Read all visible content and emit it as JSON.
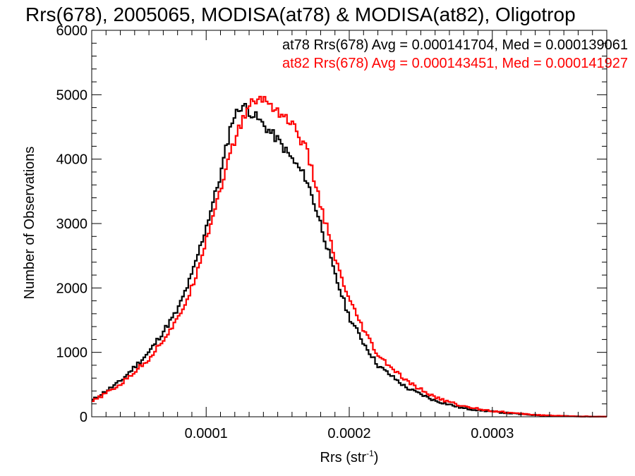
{
  "chart_data": {
    "type": "histogram",
    "title": "Rrs(678), 2005065, MODISA(at78) & MODISA(at82), Oligotrop",
    "xlabel": "Rrs (str",
    "xlabel_superscript": "-1",
    "xlabel_close": ")",
    "ylabel": "Number of Observations",
    "xlim": [
      2e-05,
      0.00038
    ],
    "ylim": [
      0,
      6000
    ],
    "x_ticks": [
      {
        "value": 0.0001,
        "label": "0.0001"
      },
      {
        "value": 0.0002,
        "label": "0.0002"
      },
      {
        "value": 0.0003,
        "label": "0.0003"
      }
    ],
    "y_ticks": [
      {
        "value": 0,
        "label": "0"
      },
      {
        "value": 1000,
        "label": "1000"
      },
      {
        "value": 2000,
        "label": "2000"
      },
      {
        "value": 3000,
        "label": "3000"
      },
      {
        "value": 4000,
        "label": "4000"
      },
      {
        "value": 5000,
        "label": "5000"
      },
      {
        "value": 6000,
        "label": "6000"
      }
    ],
    "legend_position": "top-right",
    "series": [
      {
        "name": "at78",
        "legend": "at78 Rrs(678) Avg = 0.000141704, Med = 0.000139061",
        "color": "#000000",
        "x": [
          2e-05,
          4e-05,
          6e-05,
          8e-05,
          9e-05,
          0.0001,
          0.00011,
          0.000118,
          0.000125,
          0.000135,
          0.00015,
          0.00016,
          0.00017,
          0.00018,
          0.00019,
          0.0002,
          0.00021,
          0.00022,
          0.00024,
          0.00026,
          0.00028,
          0.0003,
          0.00032,
          0.00034,
          0.00036,
          0.00038
        ],
        "y": [
          250,
          550,
          1000,
          1650,
          2200,
          2950,
          3750,
          4600,
          4850,
          4650,
          4300,
          4000,
          3700,
          3000,
          2200,
          1550,
          1150,
          800,
          450,
          250,
          130,
          80,
          40,
          15,
          5,
          2
        ]
      },
      {
        "name": "at82",
        "legend": "at82 Rrs(678) Avg = 0.000143451, Med = 0.000141927",
        "color": "#ff0000",
        "x": [
          2e-05,
          4e-05,
          6e-05,
          8e-05,
          9e-05,
          0.0001,
          0.00011,
          0.00012,
          0.00013,
          0.00014,
          0.00015,
          0.00016,
          0.00017,
          0.00018,
          0.00019,
          0.0002,
          0.00021,
          0.00022,
          0.00024,
          0.00026,
          0.00028,
          0.0003,
          0.00032,
          0.00034,
          0.00036,
          0.00038
        ],
        "y": [
          230,
          500,
          900,
          1500,
          2000,
          2750,
          3550,
          4300,
          4850,
          4950,
          4750,
          4550,
          4150,
          3300,
          2450,
          1800,
          1350,
          950,
          550,
          300,
          160,
          90,
          45,
          18,
          6,
          2
        ]
      }
    ]
  }
}
